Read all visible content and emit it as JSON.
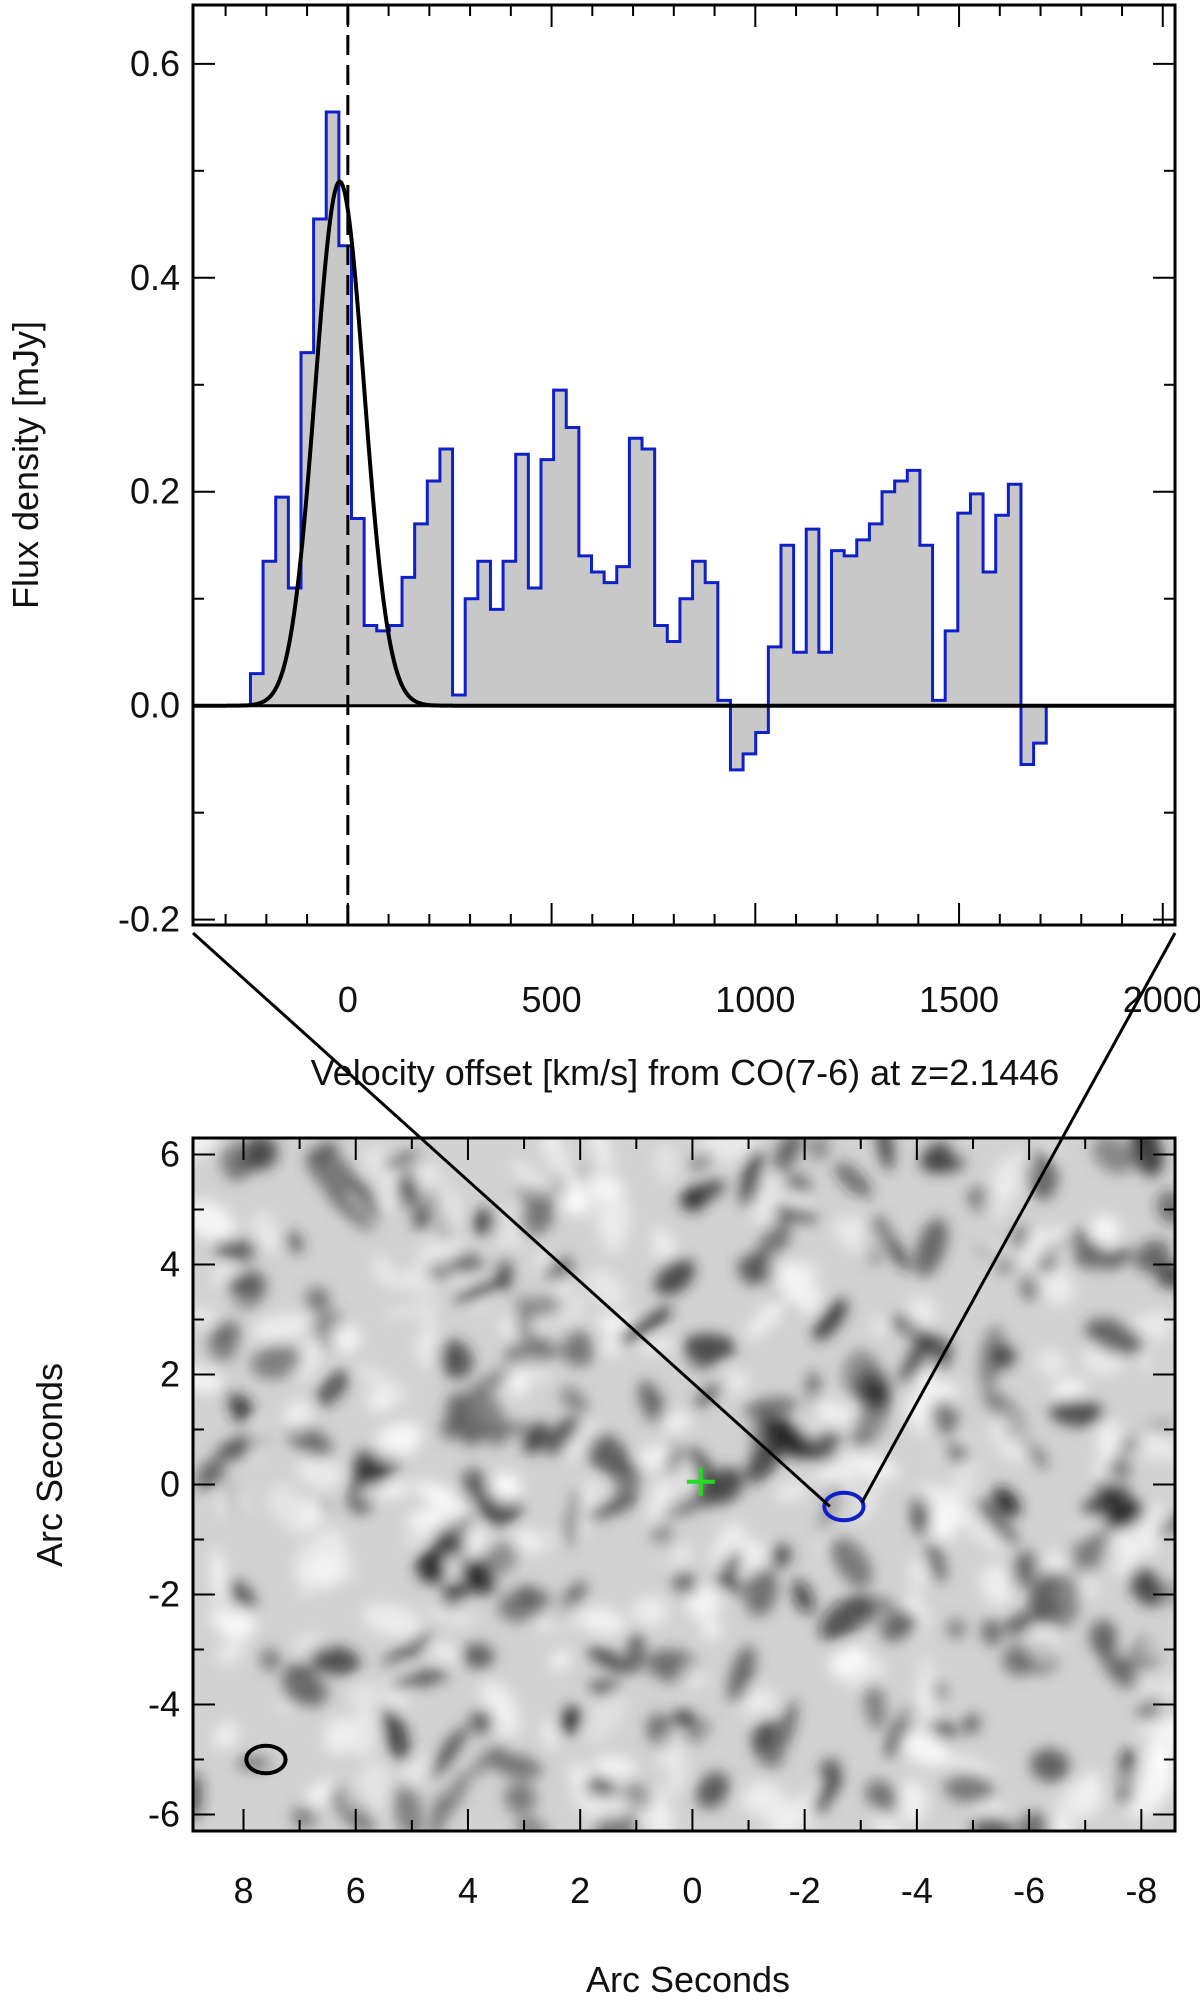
{
  "chart_data": [
    {
      "type": "step",
      "title": "",
      "xlabel": "Velocity offset [km/s] from CO(7-6) at z=2.1446",
      "ylabel": "Flux density [mJy]",
      "xlim": [
        -380,
        2030
      ],
      "ylim": [
        -0.205,
        0.655
      ],
      "xticks": [
        0,
        500,
        1000,
        1500,
        2000
      ],
      "yticks": [
        -0.2,
        0.0,
        0.2,
        0.4,
        0.6
      ],
      "xtick_labels": [
        "0",
        "500",
        "1000",
        "1500",
        "2000"
      ],
      "ytick_labels": [
        "-0.2",
        "0.0",
        "0.2",
        "0.4",
        "0.6"
      ],
      "bin_width": 31,
      "bin_start": -239,
      "series": [
        {
          "name": "CO(7-6) spectrum",
          "color": "#1020c8",
          "fill": "#c8c8c8",
          "values": [
            0.03,
            0.135,
            0.195,
            0.11,
            0.33,
            0.455,
            0.555,
            0.43,
            0.175,
            0.075,
            0.07,
            0.075,
            0.12,
            0.17,
            0.21,
            0.24,
            0.01,
            0.1,
            0.135,
            0.09,
            0.135,
            0.235,
            0.11,
            0.23,
            0.295,
            0.26,
            0.14,
            0.125,
            0.115,
            0.13,
            0.25,
            0.24,
            0.075,
            0.06,
            0.1,
            0.135,
            0.115,
            0.005,
            -0.06,
            -0.045,
            -0.025,
            0.055,
            0.15,
            0.05,
            0.165,
            0.05,
            0.145,
            0.14,
            0.155,
            0.17,
            0.2,
            0.21,
            0.22,
            0.15,
            0.005,
            0.07,
            0.18,
            0.198,
            0.125,
            0.178,
            0.207,
            -0.055,
            -0.035
          ]
        },
        {
          "name": "Gaussian fit",
          "color": "#000000",
          "amplitude": 0.49,
          "center": -20,
          "sigma": 60
        }
      ],
      "annotations": [
        {
          "type": "vline",
          "x": 0,
          "style": "dashed"
        },
        {
          "type": "hline",
          "y": 0.0,
          "style": "solid"
        }
      ]
    },
    {
      "type": "heatmap",
      "xlabel": "Arc Seconds",
      "ylabel": "Arc Seconds",
      "xlim": [
        8.9,
        -8.6
      ],
      "ylim": [
        -6.3,
        6.3
      ],
      "xticks": [
        8,
        6,
        4,
        2,
        0,
        -2,
        -4,
        -6,
        -8
      ],
      "yticks": [
        6,
        4,
        2,
        0,
        -2,
        -4,
        -6
      ],
      "xtick_labels": [
        "8",
        "6",
        "4",
        "2",
        "0",
        "-2",
        "-4",
        "-6",
        "-8"
      ],
      "ytick_labels": [
        "6",
        "4",
        "2",
        "0",
        "-2",
        "-4",
        "-6"
      ],
      "colormap": "greyscale noise map",
      "markers": [
        {
          "type": "cross",
          "name": "phase center",
          "x": -0.15,
          "y": 0.05,
          "color": "#22dd22"
        },
        {
          "type": "ellipse",
          "name": "source",
          "x": -2.7,
          "y": -0.4,
          "rx": 0.35,
          "ry": 0.25,
          "color": "#1020c8"
        },
        {
          "type": "ellipse",
          "name": "beam",
          "x": 7.6,
          "y": -5.0,
          "rx": 0.35,
          "ry": 0.25,
          "color": "#000000"
        }
      ]
    }
  ]
}
